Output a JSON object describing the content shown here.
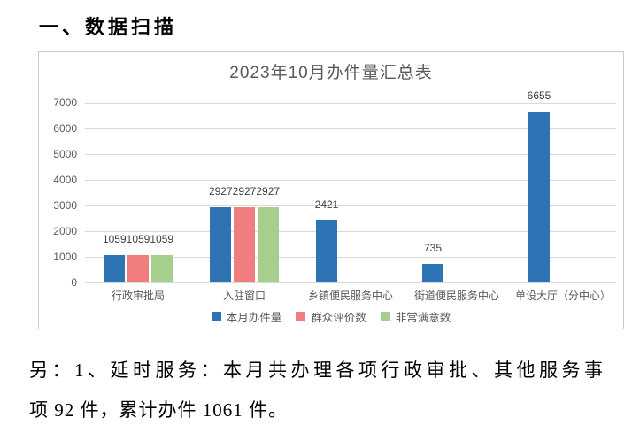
{
  "page": {
    "heading": "一、数据扫描"
  },
  "chart_data": {
    "type": "bar",
    "title": "2023年10月办件量汇总表",
    "categories": [
      "行政审批局",
      "入驻窗口",
      "乡镇便民服务中心",
      "街道便民服务中心",
      "单设大厅（分中心）"
    ],
    "series": [
      {
        "name": "本月办件量",
        "color": "#2E74B5",
        "values": [
          1059,
          2927,
          2421,
          735,
          6655
        ]
      },
      {
        "name": "群众评价数",
        "color": "#F17E7E",
        "values": [
          1059,
          2927,
          0,
          0,
          0
        ]
      },
      {
        "name": "非常满意数",
        "color": "#A6CE8C",
        "values": [
          1059,
          2927,
          0,
          0,
          0
        ]
      }
    ],
    "ylim": [
      0,
      7000
    ],
    "ytick_step": 1000,
    "grid": true,
    "legend_position": "bottom",
    "xlabel": "",
    "ylabel": "",
    "colors": {
      "grid": "#D9D9D9",
      "axis_text": "#595959",
      "title_text": "#595959",
      "data_label": "#404040",
      "chart_border": "#CBCBCB"
    }
  },
  "note": {
    "lines": [
      "另：1、延时服务：本月共办理各项行政审批、其他服务事",
      "项 92 件，累计办件 1061 件。"
    ]
  }
}
